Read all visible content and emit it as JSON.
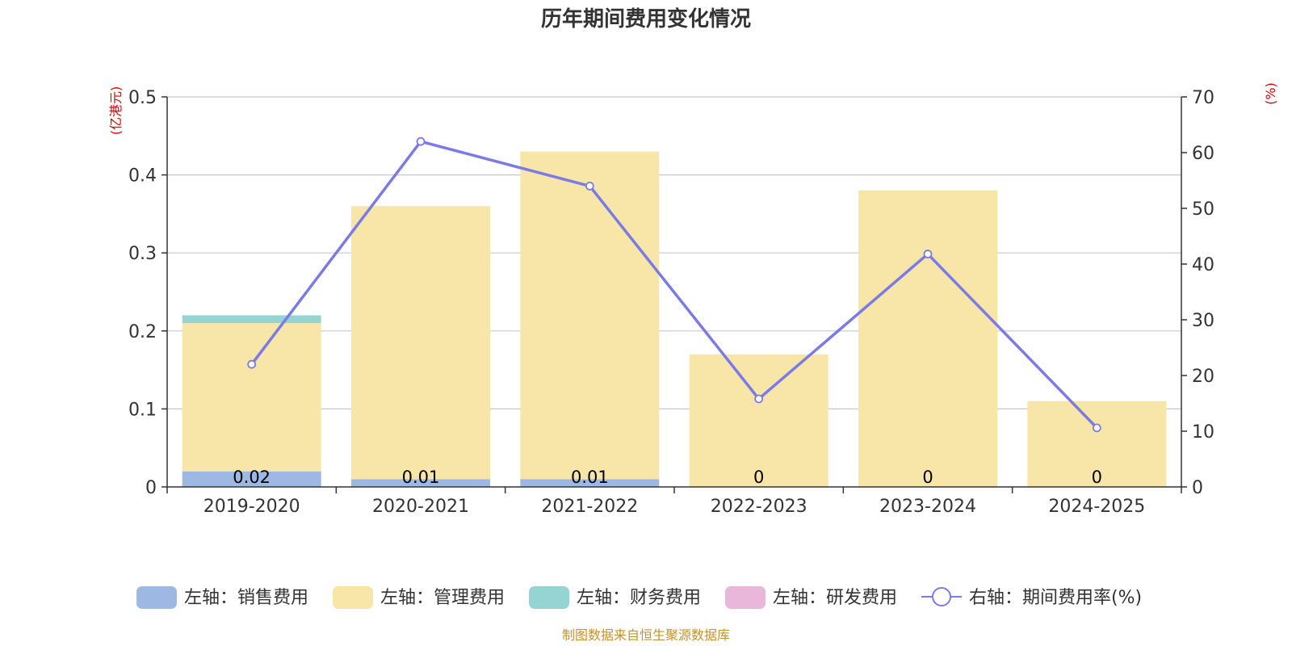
{
  "chart_data": {
    "type": "bar",
    "title": "历年期间费用变化情况",
    "left_unit": "(亿港元)",
    "right_unit": "(%)",
    "categories": [
      "2019-2020",
      "2020-2021",
      "2021-2022",
      "2022-2023",
      "2023-2024",
      "2024-2025"
    ],
    "ylim_left": [
      0,
      0.5
    ],
    "yticks_left": [
      "0",
      "0.1",
      "0.2",
      "0.3",
      "0.4",
      "0.5"
    ],
    "ylim_right": [
      0,
      70
    ],
    "yticks_right": [
      "0",
      "10",
      "20",
      "30",
      "40",
      "50",
      "60",
      "70"
    ],
    "grid": true,
    "stacked": true,
    "series": [
      {
        "name": "左轴：销售费用",
        "type": "bar",
        "axis": "left",
        "color": "#9db8e3",
        "values": [
          0.02,
          0.01,
          0.01,
          0,
          0,
          0
        ],
        "labels": [
          "0.02",
          "0.01",
          "0.01",
          "0",
          "0",
          "0"
        ]
      },
      {
        "name": "左轴：管理费用",
        "type": "bar",
        "axis": "left",
        "color": "#f7e6a7",
        "values": [
          0.19,
          0.35,
          0.42,
          0.17,
          0.38,
          0.11
        ]
      },
      {
        "name": "左轴：财务费用",
        "type": "bar",
        "axis": "left",
        "color": "#96d4d4",
        "values": [
          0.01,
          0,
          0,
          0,
          0,
          0
        ]
      },
      {
        "name": "左轴：研发费用",
        "type": "bar",
        "axis": "left",
        "color": "#e8b7d9",
        "values": [
          0,
          0,
          0,
          0,
          0,
          0
        ]
      },
      {
        "name": "右轴：期间费用率(%)",
        "type": "line",
        "axis": "right",
        "color": "#7b7be8",
        "values": [
          22.0,
          62.0,
          54.0,
          15.8,
          41.8,
          10.6
        ]
      }
    ],
    "legend_position": "bottom",
    "source_note": "制图数据来自恒生聚源数据库"
  }
}
